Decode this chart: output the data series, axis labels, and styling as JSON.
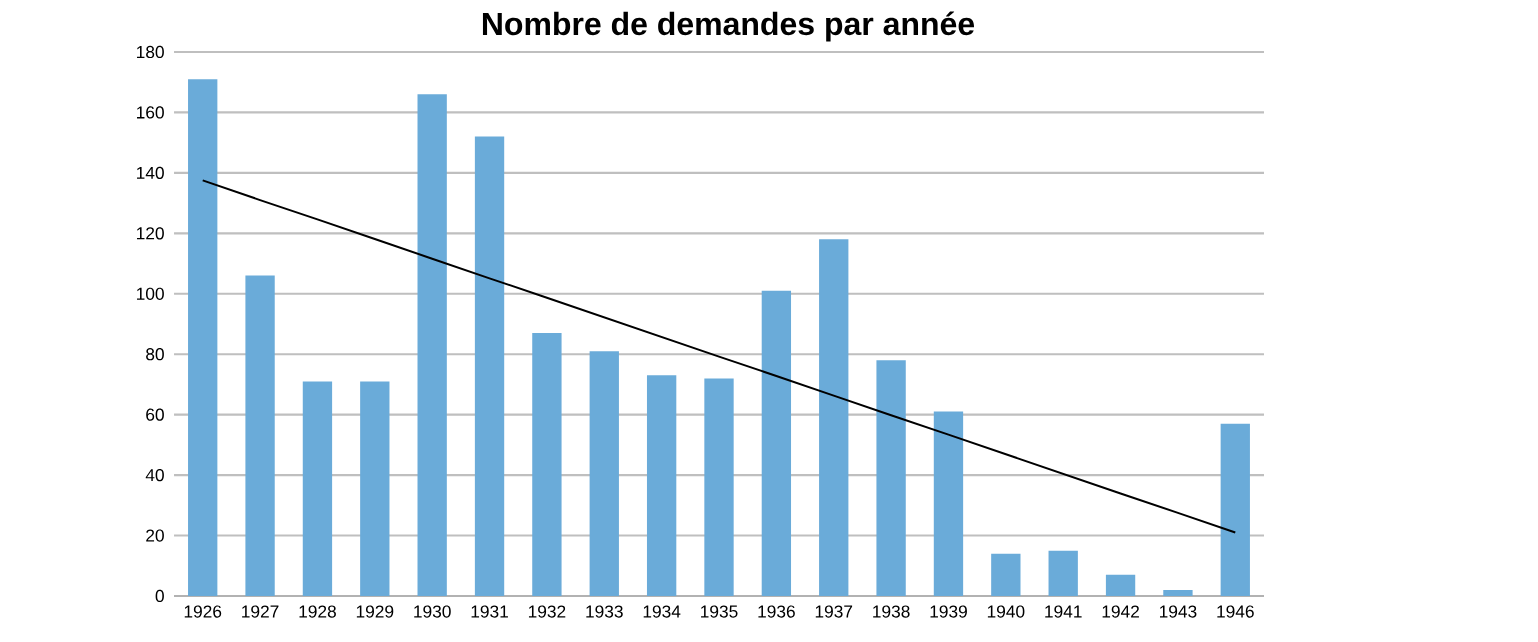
{
  "chart_data": {
    "type": "bar",
    "title": "Nombre de demandes par année",
    "categories": [
      "1926",
      "1927",
      "1928",
      "1929",
      "1930",
      "1931",
      "1932",
      "1933",
      "1934",
      "1935",
      "1936",
      "1937",
      "1938",
      "1939",
      "1940",
      "1941",
      "1942",
      "1943",
      "1946"
    ],
    "series": [
      {
        "color": "#6aabd9",
        "values": [
          171,
          106,
          71,
          71,
          166,
          152,
          87,
          81,
          73,
          72,
          101,
          118,
          78,
          61,
          14,
          15,
          7,
          2,
          57
        ]
      },
      {
        "type": "line",
        "color": "#000000",
        "values": [
          137.5,
          131,
          124.6,
          118.1,
          111.6,
          105.1,
          98.7,
          92.2,
          85.7,
          79.2,
          72.8,
          66.3,
          59.8,
          53.4,
          46.9,
          40.4,
          33.9,
          27.5,
          21
        ]
      }
    ],
    "ylim": [
      0,
      180
    ],
    "yticks": [
      0,
      20,
      40,
      60,
      80,
      100,
      120,
      140,
      160,
      180
    ],
    "grid": "y"
  }
}
